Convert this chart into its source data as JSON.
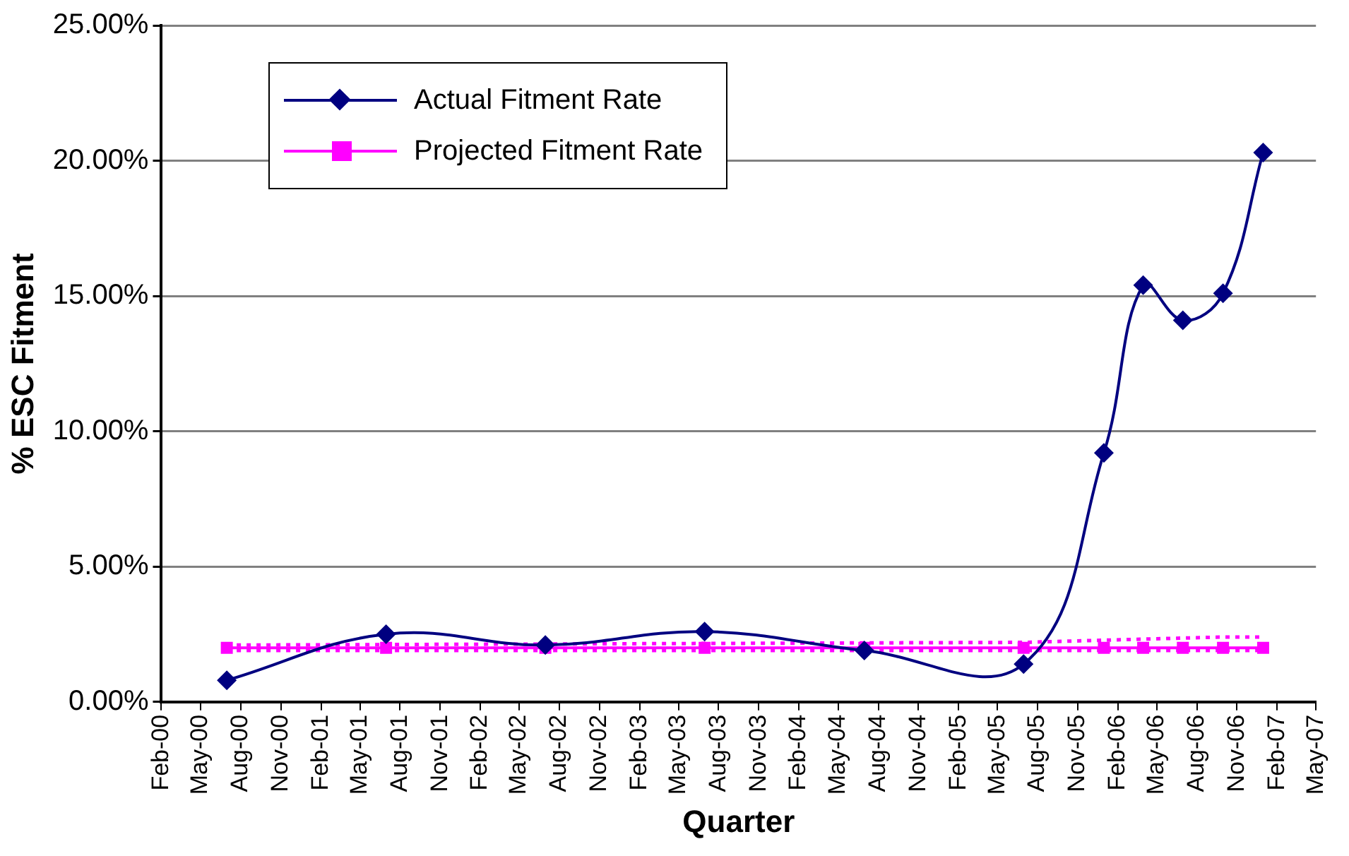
{
  "chart_data": {
    "type": "line",
    "xlabel": "Quarter",
    "ylabel": "% ESC Fitment",
    "series": [
      {
        "name": "Actual Fitment Rate",
        "color": "#000080",
        "marker": "diamond",
        "line_style": "solid",
        "x": [
          "2000-06-30",
          "2001-06-30",
          "2002-06-30",
          "2003-06-30",
          "2004-06-30",
          "2005-06-30",
          "2005-12-31",
          "2006-03-31",
          "2006-06-30",
          "2006-09-30",
          "2006-12-31"
        ],
        "values": [
          0.8,
          2.5,
          2.1,
          2.6,
          1.9,
          1.4,
          9.2,
          15.4,
          14.1,
          15.1,
          20.3
        ]
      },
      {
        "name": "Projected Fitment Rate",
        "color": "#ff00ff",
        "marker": "square",
        "line_style": "solid",
        "x": [
          "2000-06-30",
          "2001-06-30",
          "2002-06-30",
          "2003-06-30",
          "2004-06-30",
          "2005-06-30",
          "2005-12-31",
          "2006-03-31",
          "2006-06-30",
          "2006-09-30",
          "2006-12-31"
        ],
        "values": [
          2.0,
          2.0,
          2.0,
          2.0,
          2.0,
          2.0,
          2.0,
          2.0,
          2.0,
          2.0,
          2.0
        ]
      },
      {
        "color": "#ff00ff",
        "marker": "none",
        "line_style": "dotted",
        "x": [
          "2000-06-30",
          "2005-06-30",
          "2006-09-30",
          "2006-12-31"
        ],
        "values": [
          2.1,
          2.2,
          2.4,
          2.4
        ]
      },
      {
        "color": "#ff00ff",
        "marker": "none",
        "line_style": "dotted",
        "x": [
          "2000-06-30",
          "2006-12-31"
        ],
        "values": [
          1.9,
          1.9
        ]
      }
    ],
    "xlim": [
      "2000-02-01",
      "2007-05-01"
    ],
    "xticks": [
      {
        "value": "2000-02-01",
        "label": "Feb-00"
      },
      {
        "value": "2000-05-01",
        "label": "May-00"
      },
      {
        "value": "2000-08-01",
        "label": "Aug-00"
      },
      {
        "value": "2000-11-01",
        "label": "Nov-00"
      },
      {
        "value": "2001-02-01",
        "label": "Feb-01"
      },
      {
        "value": "2001-05-01",
        "label": "May-01"
      },
      {
        "value": "2001-08-01",
        "label": "Aug-01"
      },
      {
        "value": "2001-11-01",
        "label": "Nov-01"
      },
      {
        "value": "2002-02-01",
        "label": "Feb-02"
      },
      {
        "value": "2002-05-01",
        "label": "May-02"
      },
      {
        "value": "2002-08-01",
        "label": "Aug-02"
      },
      {
        "value": "2002-11-01",
        "label": "Nov-02"
      },
      {
        "value": "2003-02-01",
        "label": "Feb-03"
      },
      {
        "value": "2003-05-01",
        "label": "May-03"
      },
      {
        "value": "2003-08-01",
        "label": "Aug-03"
      },
      {
        "value": "2003-11-01",
        "label": "Nov-03"
      },
      {
        "value": "2004-02-01",
        "label": "Feb-04"
      },
      {
        "value": "2004-05-01",
        "label": "May-04"
      },
      {
        "value": "2004-08-01",
        "label": "Aug-04"
      },
      {
        "value": "2004-11-01",
        "label": "Nov-04"
      },
      {
        "value": "2005-02-01",
        "label": "Feb-05"
      },
      {
        "value": "2005-05-01",
        "label": "May-05"
      },
      {
        "value": "2005-08-01",
        "label": "Aug-05"
      },
      {
        "value": "2005-11-01",
        "label": "Nov-05"
      },
      {
        "value": "2006-02-01",
        "label": "Feb-06"
      },
      {
        "value": "2006-05-01",
        "label": "May-06"
      },
      {
        "value": "2006-08-01",
        "label": "Aug-06"
      },
      {
        "value": "2006-11-01",
        "label": "Nov-06"
      },
      {
        "value": "2007-02-01",
        "label": "Feb-07"
      },
      {
        "value": "2007-05-01",
        "label": "May-07"
      }
    ],
    "ylim": [
      0,
      25
    ],
    "yticks": [
      {
        "value": 0,
        "label": "0.00%"
      },
      {
        "value": 5,
        "label": "5.00%"
      },
      {
        "value": 10,
        "label": "10.00%"
      },
      {
        "value": 15,
        "label": "15.00%"
      },
      {
        "value": 20,
        "label": "20.00%"
      },
      {
        "value": 25,
        "label": "25.00%"
      }
    ],
    "grid": "y",
    "legend": "top left"
  }
}
